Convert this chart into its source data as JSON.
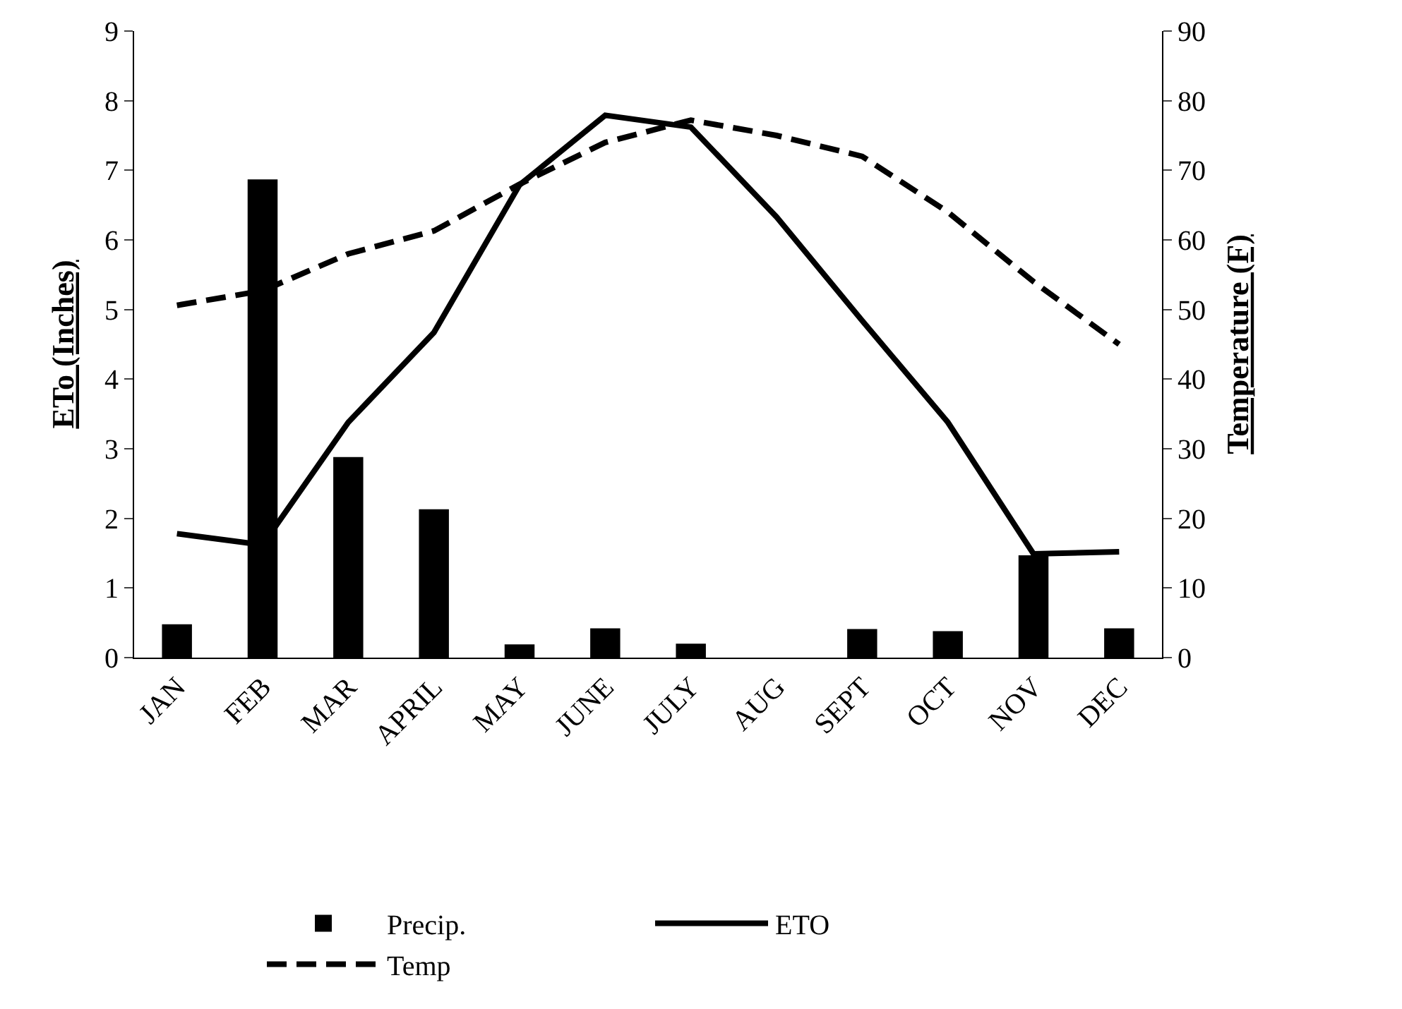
{
  "chart_data": {
    "type": "bar",
    "categories": [
      "JAN",
      "FEB",
      "MAR",
      "APRIL",
      "MAY",
      "JUNE",
      "JULY",
      "AUG",
      "SEPT",
      "OCT",
      "NOV",
      "DEC"
    ],
    "ylabel": "ETo (Inches)",
    "y2label": "Temperature (F)",
    "ylim": [
      0,
      9
    ],
    "yticks": [
      0,
      1,
      2,
      3,
      4,
      5,
      6,
      7,
      8,
      9
    ],
    "y2lim": [
      0,
      90
    ],
    "y2ticks": [
      0,
      10,
      20,
      30,
      40,
      50,
      60,
      70,
      80,
      90
    ],
    "legend": "bottom",
    "series": [
      {
        "name": "Precip.",
        "color": "#000000",
        "values": [
          0.48,
          6.87,
          2.88,
          2.13,
          0.19,
          0.42,
          0.2,
          0,
          0.41,
          0.38,
          1.47,
          0.42
        ]
      },
      {
        "name": "ETO",
        "type": "line",
        "color": "#000000",
        "line_style": "solid",
        "values": [
          1.78,
          1.62,
          3.38,
          4.67,
          6.79,
          7.79,
          7.62,
          6.33,
          4.84,
          3.38,
          1.49,
          1.52
        ]
      },
      {
        "name": "Temp",
        "type": "line",
        "color": "#000000",
        "line_style": "dashed",
        "axis": "y2",
        "values": [
          50.6,
          52.7,
          58,
          61.3,
          68,
          74,
          77.2,
          75,
          72,
          64,
          54,
          45
        ]
      }
    ]
  }
}
